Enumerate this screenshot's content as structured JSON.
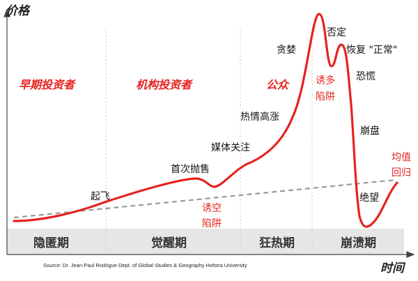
{
  "axes": {
    "y_title": "价格",
    "x_title": "时间"
  },
  "groups": [
    "早期投资者",
    "机构投资者",
    "公众"
  ],
  "phases": [
    "隐匿期",
    "觉醒期",
    "狂热期",
    "崩溃期"
  ],
  "stages": [
    "起飞",
    "首次抛售",
    "媒体关注",
    "热情高涨",
    "贪婪",
    "否定",
    "恢复 \"正常\"",
    "恐慌",
    "崩盘",
    "绝望"
  ],
  "traps": {
    "bear_trap": [
      "诱空",
      "陷阱"
    ],
    "bull_trap": [
      "诱多",
      "陷阱"
    ],
    "mean_reversion": [
      "均值",
      "回归"
    ]
  },
  "source": "Source: Dr. Jean-Paul Rodrigue Dept. of Global Studies & Geography Hofstra University",
  "colors": {
    "curve": "#e5231f",
    "trend": "#999999",
    "band": "#e6e6e6",
    "text": "#111111"
  }
}
